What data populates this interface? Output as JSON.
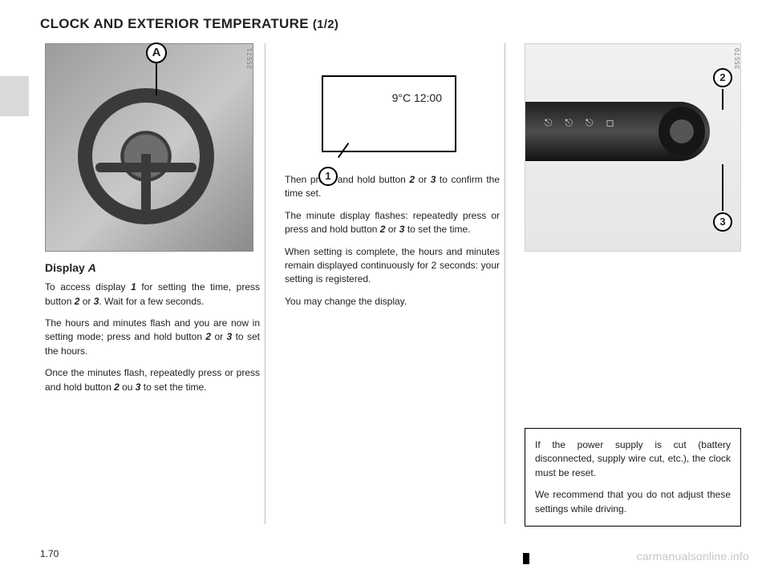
{
  "title_main": "CLOCK AND EXTERIOR TEMPERATURE ",
  "title_frac": "(1/2)",
  "tab_color": "#d9d9d9",
  "left": {
    "photo_id": "35571",
    "callout_A": "A",
    "display_heading_prefix": "Display ",
    "display_heading_letter": "A",
    "p1a": "To access display ",
    "p1_b1": "1",
    "p1b": " for setting the time, press button ",
    "p1_b2": "2",
    "p1c": " or ",
    "p1_b3": "3",
    "p1d": ". Wait for a few seconds.",
    "p2a": "The hours and minutes flash and you are now in setting mode; press and hold button ",
    "p2_b1": "2",
    "p2b": " or ",
    "p2_b2": "3",
    "p2c": " to set the hours.",
    "p3a": "Once the minutes flash, repeatedly press or press and hold button ",
    "p3_b1": "2",
    "p3b": " ou ",
    "p3_b2": "3",
    "p3c": " to set the time."
  },
  "mid": {
    "clock_text": "9°C 12:00",
    "callout_1": "1",
    "p1a": "Then press and hold button ",
    "p1_b1": "2",
    "p1b": " or ",
    "p1_b2": "3",
    "p1c": " to confirm the time set.",
    "p2a": "The minute display flashes: repeatedly press or press and hold button ",
    "p2_b1": "2",
    "p2b": " or ",
    "p2_b2": "3",
    "p2c": " to set the time.",
    "p3": "When setting is complete, the hours and minutes remain displayed continuously for 2 seconds: your setting is registered.",
    "p4": "You may change the display."
  },
  "right": {
    "photo_id": "35570",
    "callout_2": "2",
    "callout_3": "3",
    "note_p1": "If the power supply is cut (battery disconnected, supply wire cut, etc.), the clock must be reset.",
    "note_p2": "We recommend that you do not adjust these settings while driving."
  },
  "pagenum": "1.70",
  "watermark": "carmanualsonline.info",
  "colors": {
    "text": "#222222",
    "rule": "#bdbdbd",
    "photo_border": "#8a8a8a",
    "wheel": "#3a3a3a"
  }
}
